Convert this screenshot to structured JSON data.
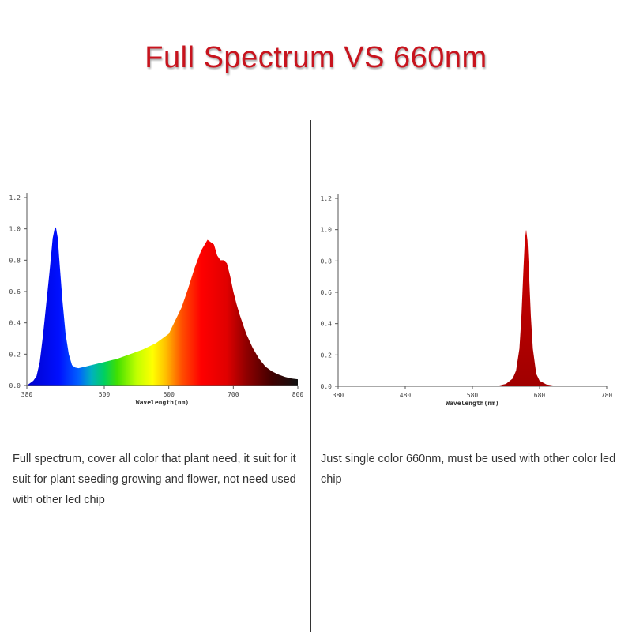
{
  "title": "Full Spectrum VS 660nm",
  "colors": {
    "title": "#c8141e",
    "axis": "#555555",
    "peak_660": "#c00000"
  },
  "chart_data": [
    {
      "type": "area",
      "xlabel": "Wavelength(nm)",
      "ylabel": "",
      "xlim": [
        380,
        800
      ],
      "ylim": [
        0,
        1.2
      ],
      "x_ticks": [
        380,
        500,
        600,
        700,
        800
      ],
      "y_ticks": [
        "0.0",
        "0.2",
        "0.4",
        "0.6",
        "0.8",
        "1.0",
        "1.2"
      ],
      "fill": "spectrum gradient (blue-green-yellow-red-black)",
      "grid": false,
      "x": [
        380,
        390,
        395,
        400,
        405,
        410,
        415,
        418,
        420,
        423,
        425,
        428,
        430,
        435,
        440,
        445,
        450,
        455,
        460,
        470,
        480,
        490,
        500,
        520,
        540,
        560,
        580,
        600,
        620,
        630,
        640,
        650,
        660,
        670,
        675,
        680,
        685,
        690,
        695,
        700,
        705,
        710,
        720,
        730,
        740,
        750,
        760,
        770,
        780,
        790,
        800
      ],
      "y": [
        0,
        0.03,
        0.06,
        0.15,
        0.32,
        0.52,
        0.72,
        0.85,
        0.94,
        1.0,
        1.01,
        0.94,
        0.82,
        0.55,
        0.33,
        0.2,
        0.13,
        0.115,
        0.11,
        0.12,
        0.13,
        0.14,
        0.15,
        0.17,
        0.2,
        0.23,
        0.27,
        0.33,
        0.5,
        0.62,
        0.75,
        0.86,
        0.93,
        0.9,
        0.83,
        0.8,
        0.8,
        0.78,
        0.7,
        0.6,
        0.52,
        0.45,
        0.33,
        0.24,
        0.17,
        0.12,
        0.09,
        0.07,
        0.055,
        0.045,
        0.04
      ]
    },
    {
      "type": "area",
      "xlabel": "Wavelength(nm)",
      "ylabel": "",
      "xlim": [
        380,
        780
      ],
      "ylim": [
        0,
        1.2
      ],
      "x_ticks": [
        380,
        480,
        580,
        680,
        780
      ],
      "y_ticks": [
        "0.0",
        "0.2",
        "0.4",
        "0.6",
        "0.8",
        "1.0",
        "1.2"
      ],
      "fill": "#c00000",
      "grid": false,
      "x": [
        380,
        560,
        600,
        620,
        630,
        640,
        645,
        650,
        653,
        656,
        658,
        660,
        662,
        664,
        667,
        670,
        675,
        680,
        690,
        700,
        720,
        750,
        780
      ],
      "y": [
        0,
        0,
        0,
        0.005,
        0.015,
        0.05,
        0.1,
        0.24,
        0.45,
        0.75,
        0.93,
        1.0,
        0.93,
        0.75,
        0.45,
        0.24,
        0.08,
        0.035,
        0.012,
        0.005,
        0.004,
        0.004,
        0.004
      ]
    }
  ],
  "left_text": "Full spectrum, cover all color that plant need, it suit for it suit for plant seeding growing and flower, not need used with other led chip",
  "right_text": "Just single color 660nm, must be used with other color led chip"
}
